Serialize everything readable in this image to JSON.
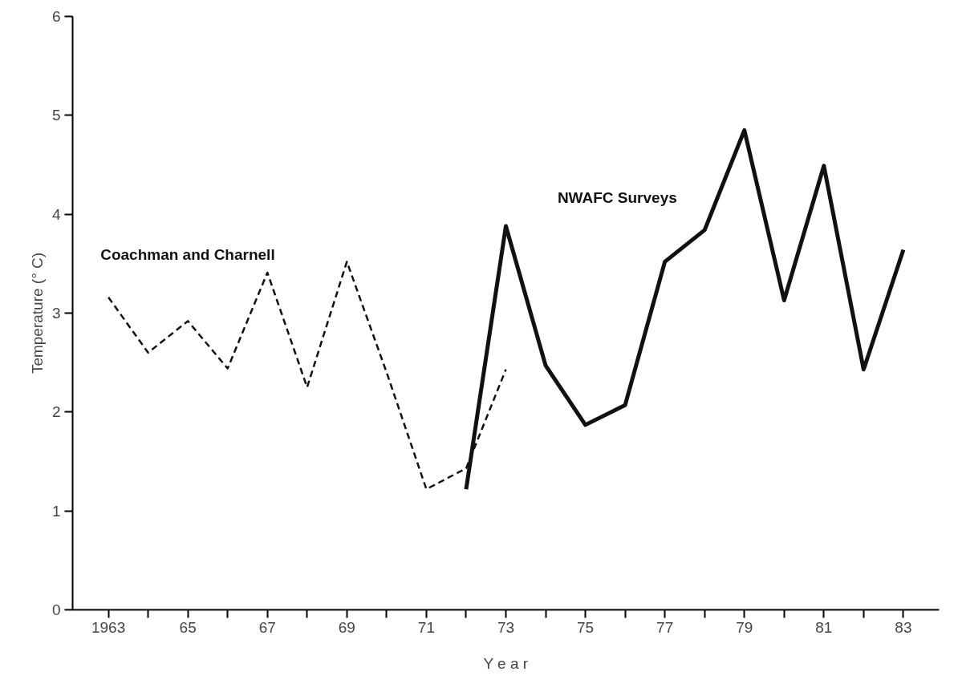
{
  "chart_data": {
    "type": "line",
    "xlabel": "Y e a r",
    "ylabel": "Temperature (° C)",
    "xlim": [
      1962.1,
      1983.9
    ],
    "ylim": [
      0,
      6
    ],
    "xticks": [
      {
        "value": 1963,
        "label": "1963"
      },
      {
        "value": 1964,
        "label": null
      },
      {
        "value": 1965,
        "label": "65"
      },
      {
        "value": 1966,
        "label": null
      },
      {
        "value": 1967,
        "label": "67"
      },
      {
        "value": 1968,
        "label": null
      },
      {
        "value": 1969,
        "label": "69"
      },
      {
        "value": 1970,
        "label": null
      },
      {
        "value": 1971,
        "label": "71"
      },
      {
        "value": 1972,
        "label": null
      },
      {
        "value": 1973,
        "label": "73"
      },
      {
        "value": 1974,
        "label": null
      },
      {
        "value": 1975,
        "label": "75"
      },
      {
        "value": 1976,
        "label": null
      },
      {
        "value": 1977,
        "label": "77"
      },
      {
        "value": 1978,
        "label": null
      },
      {
        "value": 1979,
        "label": "79"
      },
      {
        "value": 1980,
        "label": null
      },
      {
        "value": 1981,
        "label": "81"
      },
      {
        "value": 1982,
        "label": null
      },
      {
        "value": 1983,
        "label": "83"
      }
    ],
    "yticks": [
      0,
      1,
      2,
      3,
      4,
      5,
      6
    ],
    "grid": false,
    "marker": "none",
    "series": [
      {
        "name": "Coachman and Charnell",
        "color": "#111111",
        "line_style": "dashed",
        "x": [
          1963,
          1964,
          1965,
          1966,
          1967,
          1968,
          1969,
          1970,
          1971,
          1972,
          1973
        ],
        "values": [
          3.16,
          2.6,
          2.92,
          2.44,
          3.41,
          2.25,
          3.52,
          2.4,
          1.22,
          1.43,
          2.43
        ]
      },
      {
        "name": "NWAFC Surveys",
        "color": "#111111",
        "line_style": "solid",
        "x": [
          1972,
          1973,
          1974,
          1975,
          1976,
          1977,
          1978,
          1979,
          1980,
          1981,
          1982,
          1983
        ],
        "values": [
          1.22,
          3.88,
          2.47,
          1.87,
          2.07,
          3.52,
          3.84,
          4.85,
          3.13,
          4.49,
          2.43,
          3.64
        ]
      }
    ]
  }
}
